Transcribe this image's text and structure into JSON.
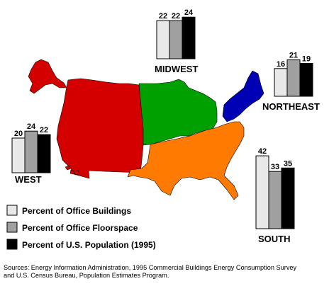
{
  "chart_data": {
    "type": "bar",
    "categories": [
      "Percent of Office Buildings",
      "Percent of Office Floorspace",
      "Percent of U.S. Population (1995)"
    ],
    "regions": [
      {
        "name": "WEST",
        "values": [
          20,
          24,
          22
        ],
        "color": "#d40000"
      },
      {
        "name": "MIDWEST",
        "values": [
          22,
          22,
          24
        ],
        "color": "#00a000"
      },
      {
        "name": "NORTHEAST",
        "values": [
          16,
          21,
          19
        ],
        "color": "#0000b4"
      },
      {
        "name": "SOUTH",
        "values": [
          42,
          33,
          35
        ],
        "color": "#ff7a00"
      }
    ],
    "series_colors": [
      "#e8e8e8",
      "#a0a0a0",
      "#000000"
    ]
  },
  "legend": {
    "items": [
      "Percent of Office Buildings",
      "Percent of Office Floorspace",
      "Percent of U.S. Population (1995)"
    ]
  },
  "sources": {
    "line1": "Sources:  Energy Information Administration, 1995 Commercial Buildings Energy Consumption Survey",
    "line2": "and U.S. Census Bureau, Population Estimates Program."
  }
}
